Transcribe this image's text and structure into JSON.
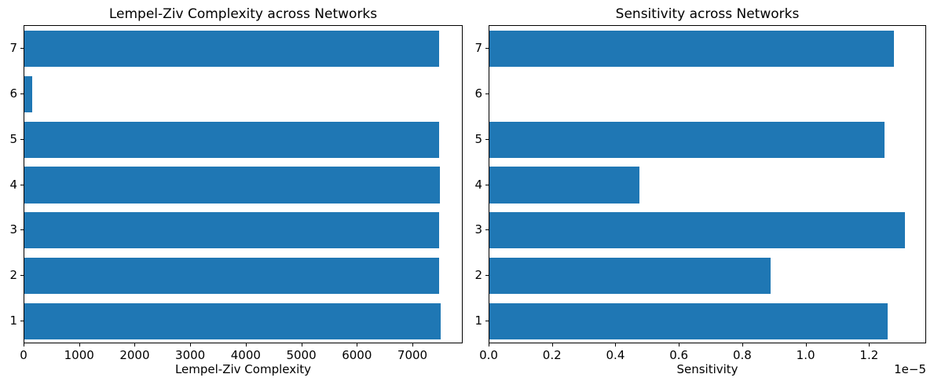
{
  "figure": {
    "background_color": "#ffffff",
    "bar_color": "#1f77b4",
    "spine_color": "#000000",
    "text_color": "#000000"
  },
  "chart_data": [
    {
      "type": "bar",
      "orientation": "horizontal",
      "title": "Lempel-Ziv Complexity across Networks",
      "xlabel": "Lempel-Ziv Complexity",
      "ylabel": "",
      "categories": [
        "1",
        "2",
        "3",
        "4",
        "5",
        "6",
        "7"
      ],
      "values": [
        7515,
        7490,
        7500,
        7505,
        7495,
        140,
        7500
      ],
      "xlim": [
        0,
        7905
      ],
      "xticks": [
        {
          "value": 0,
          "label": "0"
        },
        {
          "value": 1000,
          "label": "1000"
        },
        {
          "value": 2000,
          "label": "2000"
        },
        {
          "value": 3000,
          "label": "3000"
        },
        {
          "value": 4000,
          "label": "4000"
        },
        {
          "value": 5000,
          "label": "5000"
        },
        {
          "value": 6000,
          "label": "6000"
        },
        {
          "value": 7000,
          "label": "7000"
        }
      ],
      "offset_label": "",
      "grid": false,
      "legend": null
    },
    {
      "type": "bar",
      "orientation": "horizontal",
      "title": "Sensitivity across Networks",
      "xlabel": "Sensitivity",
      "ylabel": "",
      "categories": [
        "1",
        "2",
        "3",
        "4",
        "5",
        "6",
        "7"
      ],
      "values": [
        1.26e-05,
        8.9e-06,
        1.315e-05,
        4.76e-06,
        1.25e-05,
        0,
        1.28e-05
      ],
      "xlim": [
        0,
        1.38e-05
      ],
      "xticks": [
        {
          "value": 0,
          "label": "0.0"
        },
        {
          "value": 2e-06,
          "label": "0.2"
        },
        {
          "value": 4e-06,
          "label": "0.4"
        },
        {
          "value": 6e-06,
          "label": "0.6"
        },
        {
          "value": 8e-06,
          "label": "0.8"
        },
        {
          "value": 1e-05,
          "label": "1.0"
        },
        {
          "value": 1.2e-05,
          "label": "1.2"
        }
      ],
      "offset_label": "1e−5",
      "grid": false,
      "legend": null
    }
  ]
}
